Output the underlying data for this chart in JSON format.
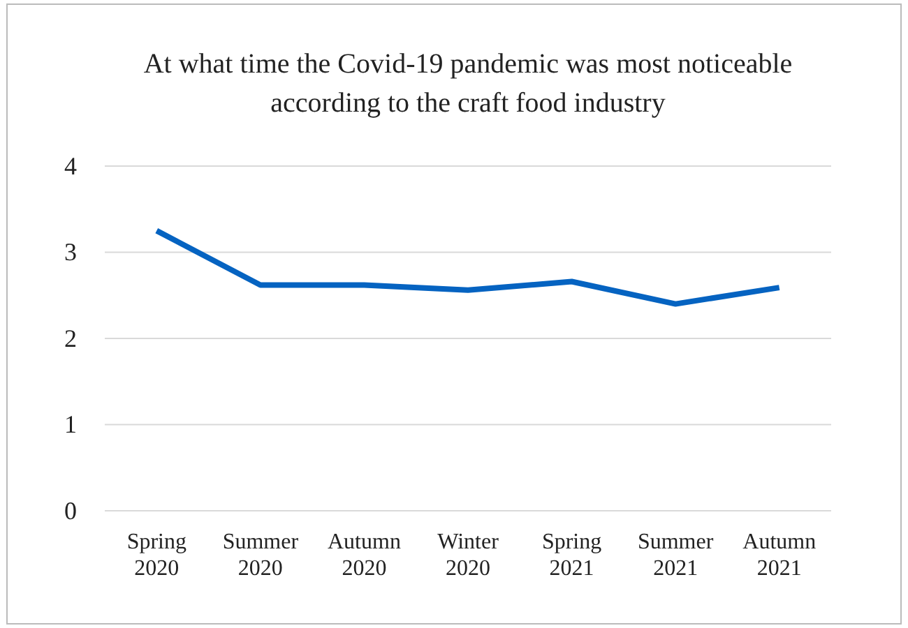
{
  "chart_data": {
    "type": "line",
    "title": "At what time the Covid-19 pandemic was most noticeable according to the craft food industry",
    "categories": [
      "Spring 2020",
      "Summer 2020",
      "Autumn 2020",
      "Winter 2020",
      "Spring 2021",
      "Summer 2021",
      "Autumn 2021"
    ],
    "series": [
      {
        "color": "#0563c1",
        "values": [
          3.25,
          2.62,
          2.62,
          2.56,
          2.66,
          2.4,
          2.59
        ]
      }
    ],
    "ylim": [
      0,
      4
    ],
    "yticks": [
      0,
      1,
      2,
      3,
      4
    ],
    "grid": "y",
    "marker": "none",
    "line_style": "solid"
  }
}
